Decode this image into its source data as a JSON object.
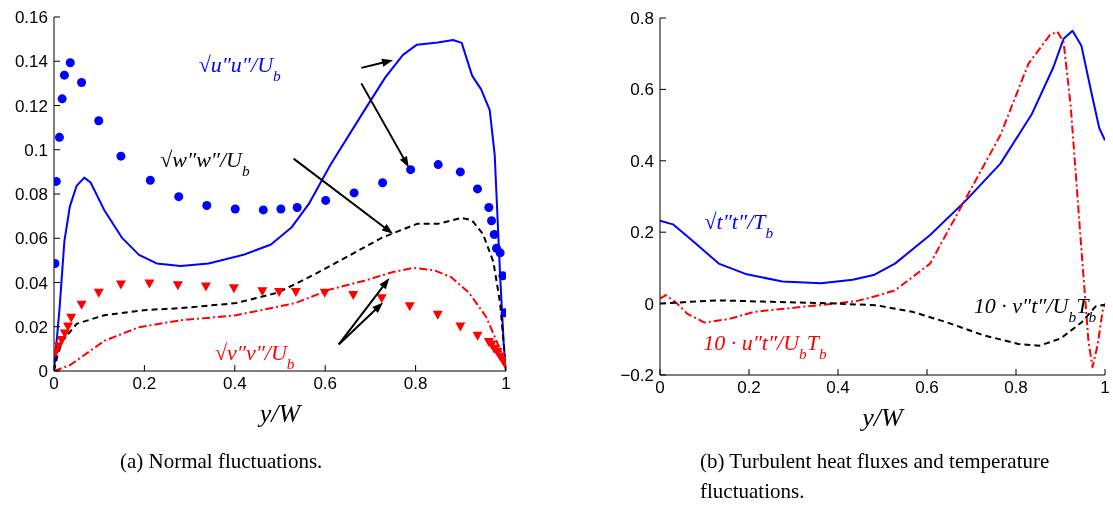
{
  "chart_data": [
    {
      "type": "line",
      "title": "(a) Normal fluctuations.",
      "xlabel": "y/W",
      "xlim": [
        0,
        1
      ],
      "xticks": [
        0,
        0.2,
        0.4,
        0.6,
        0.8,
        1
      ],
      "ylim": [
        0,
        0.16
      ],
      "yticks": [
        0,
        0.02,
        0.04,
        0.06,
        0.08,
        0.1,
        0.12,
        0.14,
        0.16
      ],
      "series": [
        {
          "name": "√u″u″/U$_{b}$",
          "color": "#0000ff",
          "line_style": "solid",
          "x": [
            0,
            0.012,
            0.023,
            0.035,
            0.05,
            0.067,
            0.081,
            0.111,
            0.15,
            0.188,
            0.227,
            0.28,
            0.342,
            0.419,
            0.48,
            0.526,
            0.565,
            0.611,
            0.687,
            0.733,
            0.772,
            0.803,
            0.849,
            0.883,
            0.902,
            0.925,
            0.945,
            0.964,
            0.975,
            0.987,
            0.995,
            1
          ],
          "values": [
            0,
            0.0276,
            0.0587,
            0.0743,
            0.0837,
            0.0874,
            0.0852,
            0.0728,
            0.0603,
            0.0525,
            0.0486,
            0.0475,
            0.0486,
            0.0525,
            0.0572,
            0.065,
            0.0759,
            0.093,
            0.1179,
            0.1327,
            0.1429,
            0.1475,
            0.1485,
            0.1496,
            0.1483,
            0.1335,
            0.1273,
            0.1179,
            0.0977,
            0.0432,
            0.012,
            0
          ]
        },
        {
          "type": "scatter",
          "color": "#0000ff",
          "marker": "circle",
          "x": [
            0.002,
            0.005,
            0.012,
            0.018,
            0.023,
            0.036,
            0.061,
            0.099,
            0.148,
            0.213,
            0.276,
            0.338,
            0.401,
            0.463,
            0.502,
            0.538,
            0.601,
            0.664,
            0.727,
            0.789,
            0.85,
            0.899,
            0.937,
            0.962,
            0.968,
            0.974,
            0.979,
            0.987,
            0.993,
            0.998
          ],
          "values": [
            0.0486,
            0.0857,
            0.1056,
            0.123,
            0.1337,
            0.1393,
            0.1304,
            0.1131,
            0.0971,
            0.0862,
            0.0788,
            0.0748,
            0.0732,
            0.0728,
            0.0732,
            0.0739,
            0.0771,
            0.0805,
            0.0851,
            0.091,
            0.0933,
            0.09,
            0.0823,
            0.0739,
            0.0679,
            0.0617,
            0.0555,
            0.0534,
            0.043,
            0.0263
          ]
        },
        {
          "name": "√w″w″/U$_{b}$",
          "color": "#000000",
          "line_style": "dashed",
          "x": [
            0,
            0.008,
            0.019,
            0.05,
            0.111,
            0.204,
            0.28,
            0.403,
            0.495,
            0.572,
            0.649,
            0.726,
            0.803,
            0.849,
            0.902,
            0.925,
            0.949,
            0.972,
            0.987,
            0.995,
            1
          ],
          "values": [
            0,
            0.0073,
            0.0136,
            0.0213,
            0.0252,
            0.0276,
            0.0284,
            0.0307,
            0.0354,
            0.0432,
            0.0517,
            0.0603,
            0.0665,
            0.0665,
            0.0692,
            0.0681,
            0.0619,
            0.0494,
            0.0307,
            0.012,
            0
          ]
        },
        {
          "name": "√v″v″/U$_{b}$",
          "color": "#ff0000",
          "line_style": "dashdot",
          "x": [
            0,
            0.035,
            0.111,
            0.188,
            0.28,
            0.403,
            0.534,
            0.611,
            0.687,
            0.749,
            0.795,
            0.841,
            0.879,
            0.918,
            0.956,
            0.979,
            0.995,
            1
          ],
          "values": [
            0,
            0.0026,
            0.0136,
            0.0198,
            0.0229,
            0.0252,
            0.0307,
            0.0369,
            0.0408,
            0.0447,
            0.0466,
            0.0455,
            0.0424,
            0.0354,
            0.0245,
            0.0136,
            0.0058,
            0
          ]
        },
        {
          "type": "scatter",
          "color": "#ff0000",
          "marker": "triangle",
          "x": [
            0.004,
            0.01,
            0.017,
            0.024,
            0.031,
            0.038,
            0.061,
            0.099,
            0.148,
            0.211,
            0.274,
            0.336,
            0.398,
            0.461,
            0.498,
            0.535,
            0.599,
            0.662,
            0.725,
            0.787,
            0.849,
            0.899,
            0.937,
            0.962,
            0.968,
            0.974,
            0.981,
            0.987,
            0.993,
            0.997
          ],
          "values": [
            0.0086,
            0.0112,
            0.014,
            0.017,
            0.0201,
            0.0241,
            0.0299,
            0.0354,
            0.0391,
            0.0396,
            0.0388,
            0.0382,
            0.0374,
            0.0361,
            0.0357,
            0.0357,
            0.0354,
            0.0344,
            0.0329,
            0.0293,
            0.0254,
            0.0201,
            0.0159,
            0.0131,
            0.012,
            0.0101,
            0.0086,
            0.0065,
            0.005,
            0.0034
          ]
        }
      ]
    },
    {
      "type": "line",
      "title": "(b) Turbulent heat fluxes and temperature fluctuations.",
      "xlabel": "y/W",
      "xlim": [
        0,
        1
      ],
      "xticks": [
        0,
        0.2,
        0.4,
        0.6,
        0.8,
        1
      ],
      "ylim": [
        -0.2,
        0.8
      ],
      "yticks": [
        {
          "value": -0.2,
          "label": "−0.2"
        },
        0,
        0.2,
        0.4,
        0.6,
        0.8
      ],
      "series": [
        {
          "name": "√t″t″/T$_{b}$",
          "color": "#0000ff",
          "line_style": "solid",
          "x": [
            0,
            0.029,
            0.077,
            0.132,
            0.195,
            0.275,
            0.362,
            0.433,
            0.48,
            0.528,
            0.607,
            0.686,
            0.765,
            0.836,
            0.884,
            0.907,
            0.927,
            0.947,
            0.971,
            0.987,
            1
          ],
          "values": [
            0.232,
            0.222,
            0.172,
            0.112,
            0.082,
            0.062,
            0.057,
            0.067,
            0.08,
            0.112,
            0.192,
            0.287,
            0.392,
            0.532,
            0.662,
            0.742,
            0.764,
            0.722,
            0.582,
            0.492,
            0.457
          ]
        },
        {
          "name": "10 · u″t″/U$_{b}$T$_{b}$",
          "color": "#ff0000",
          "line_style": "dashdot",
          "x": [
            0,
            0.013,
            0.037,
            0.061,
            0.1,
            0.156,
            0.211,
            0.29,
            0.369,
            0.441,
            0.488,
            0.528,
            0.607,
            0.686,
            0.765,
            0.828,
            0.876,
            0.893,
            0.907,
            0.923,
            0.947,
            0.963,
            0.972,
            0.983,
            0.995,
            1
          ],
          "values": [
            0.014,
            0.024,
            0.002,
            -0.028,
            -0.053,
            -0.043,
            -0.023,
            -0.013,
            -0.003,
            0.007,
            0.022,
            0.037,
            0.112,
            0.292,
            0.472,
            0.672,
            0.752,
            0.762,
            0.732,
            0.552,
            0.152,
            -0.108,
            -0.178,
            -0.118,
            -0.018,
            0
          ]
        },
        {
          "name": "10 · v″t″/U$_{b}$T$_{b}$",
          "color": "#000000",
          "line_style": "dashed",
          "x": [
            0,
            0.053,
            0.132,
            0.251,
            0.401,
            0.488,
            0.567,
            0.646,
            0.725,
            0.805,
            0.852,
            0.9,
            0.947,
            0.979,
            1
          ],
          "values": [
            0,
            0.004,
            0.009,
            0.005,
            0,
            -0.005,
            -0.023,
            -0.053,
            -0.088,
            -0.113,
            -0.118,
            -0.098,
            -0.053,
            -0.008,
            -0.003
          ]
        }
      ]
    }
  ]
}
